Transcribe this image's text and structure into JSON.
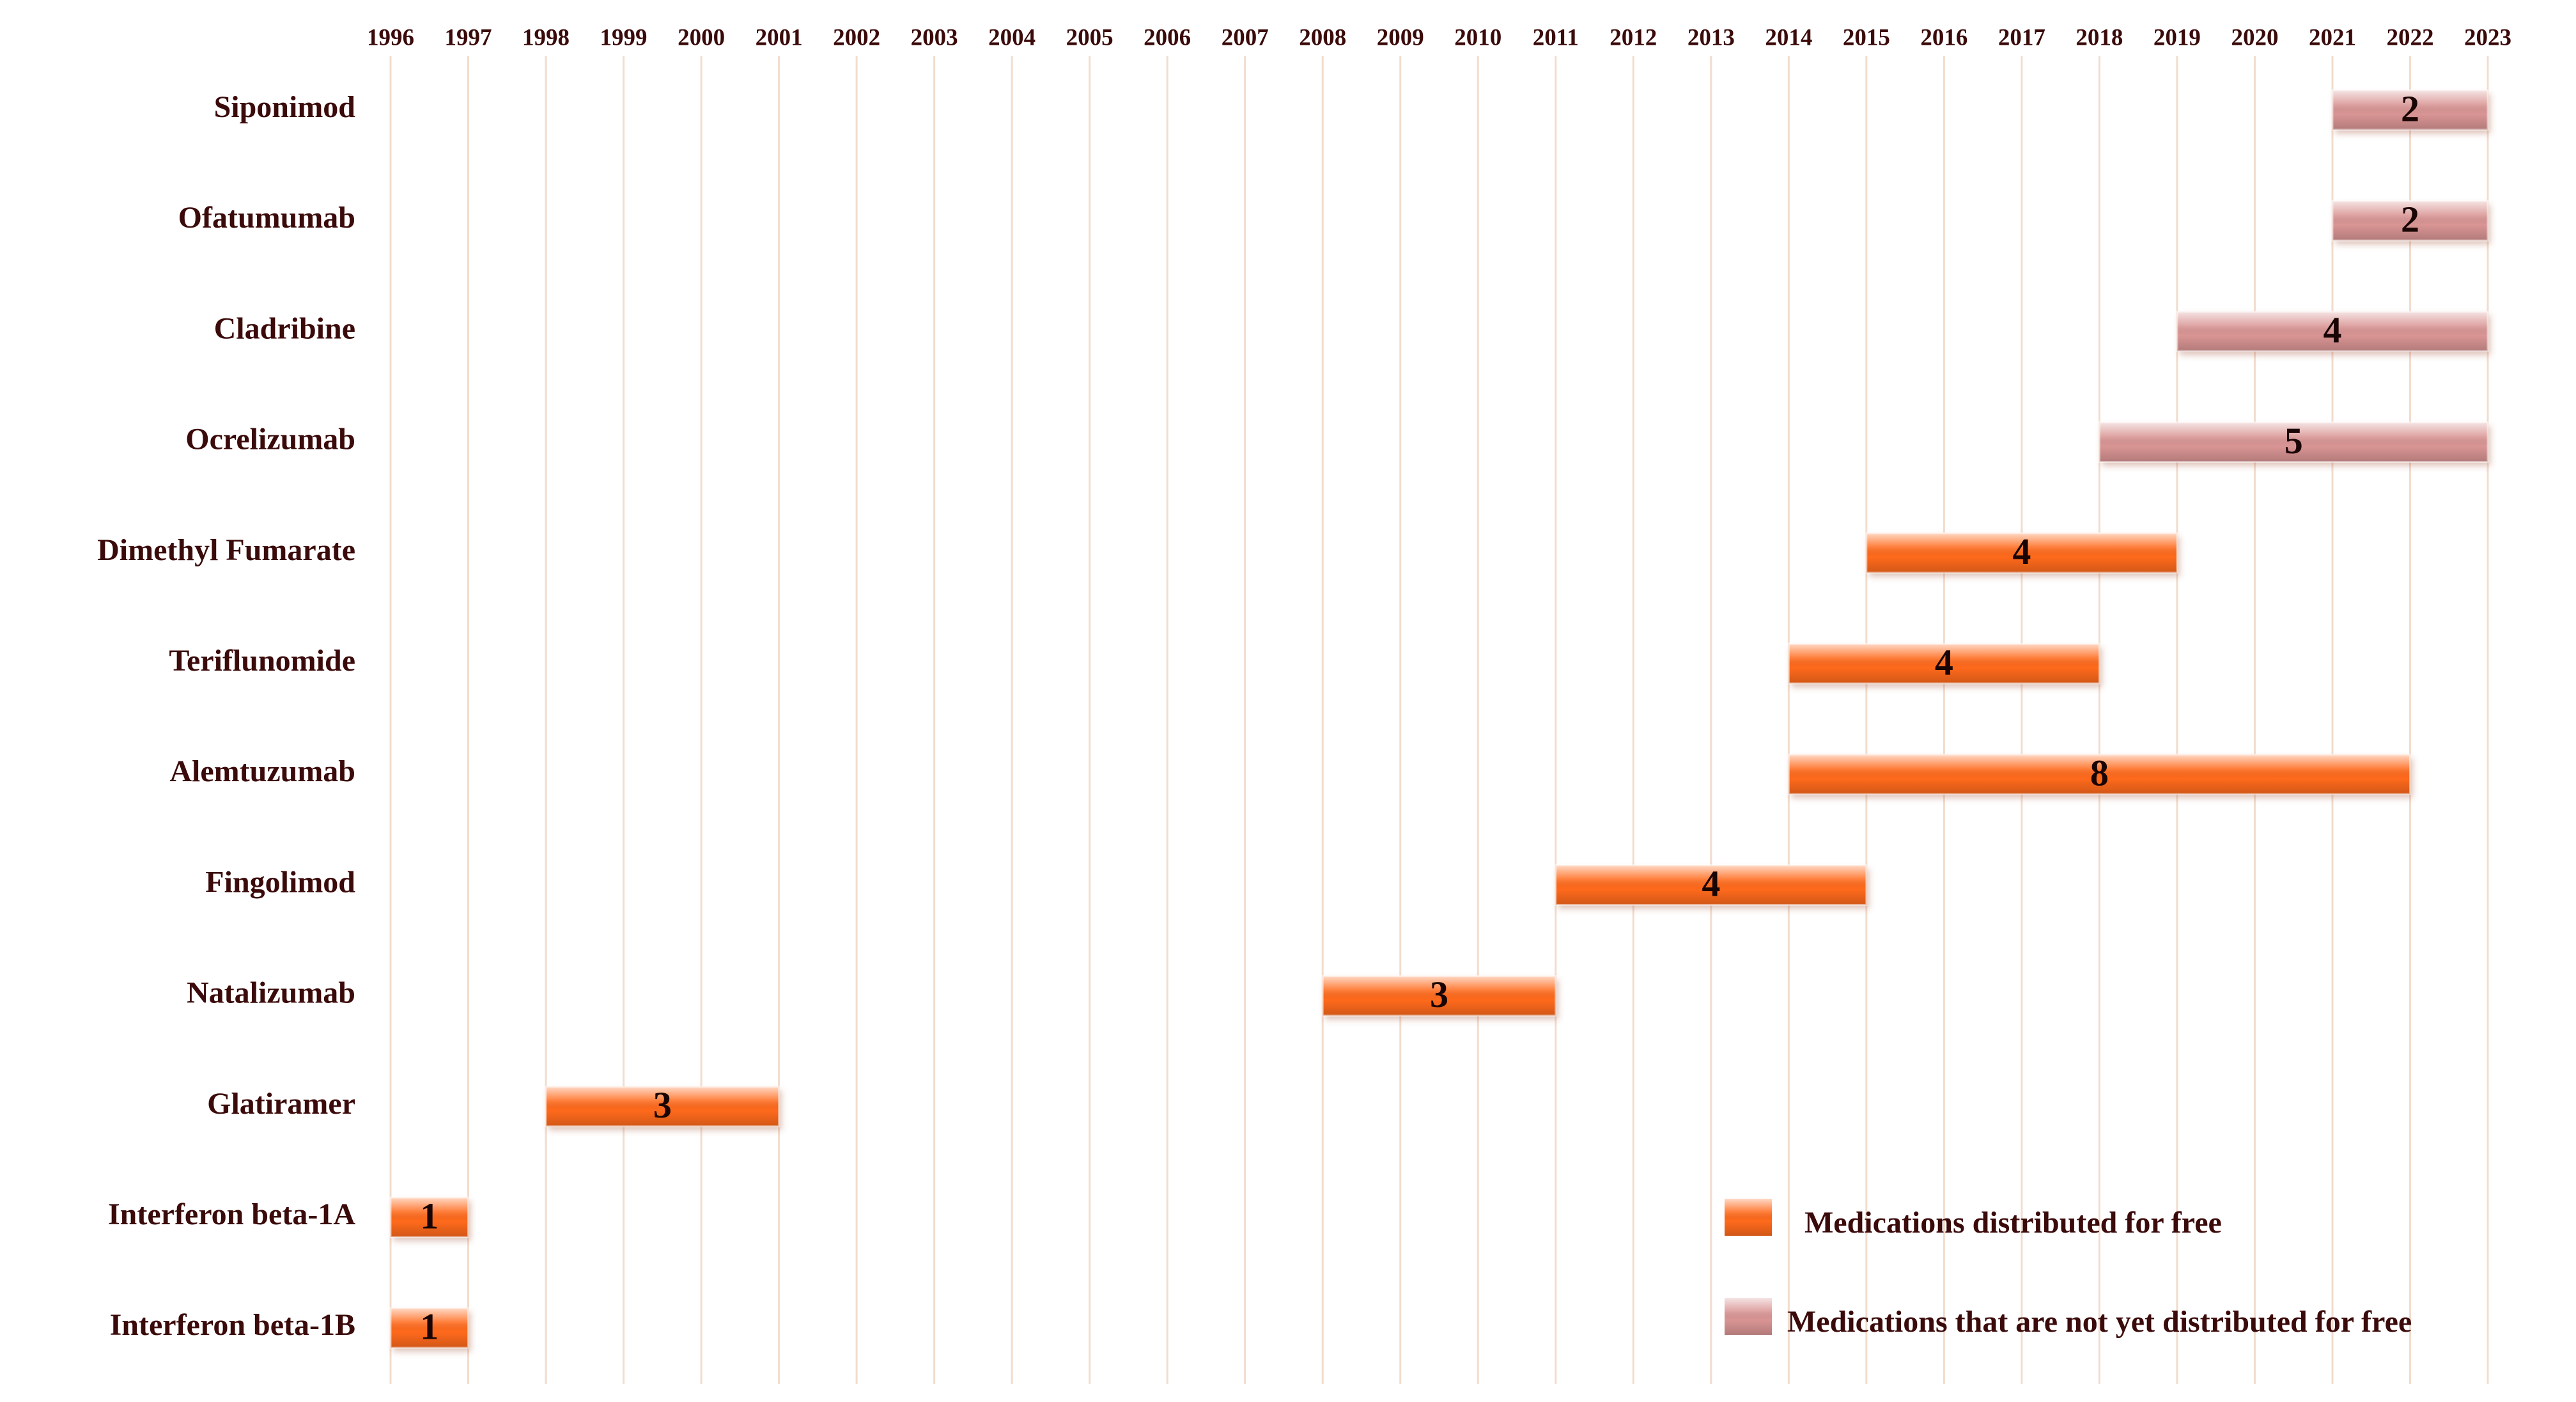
{
  "chart_data": {
    "type": "gantt",
    "categories": [
      "Siponimod",
      "Ofatumumab",
      "Cladribine",
      "Ocrelizumab",
      "Dimethyl Fumarate",
      "Teriflunomide",
      "Alemtuzumab",
      "Fingolimod",
      "Natalizumab",
      "Glatiramer",
      "Interferon beta-1A",
      "Interferon beta-1B"
    ],
    "series": [
      {
        "name": "Medications distributed for free",
        "color": "#ff6a1c",
        "start": [
          null,
          null,
          null,
          null,
          2015,
          2014,
          2014,
          2011,
          2008,
          1998,
          1996,
          1996
        ],
        "values": [
          null,
          null,
          null,
          null,
          4,
          4,
          8,
          4,
          3,
          3,
          1,
          1
        ]
      },
      {
        "name": "Medications that are not yet distributed for free",
        "color": "#d99594",
        "start": [
          2021,
          2021,
          2019,
          2018,
          null,
          null,
          null,
          null,
          null,
          null,
          null,
          null
        ],
        "values": [
          2,
          2,
          4,
          5,
          null,
          null,
          null,
          null,
          null,
          null,
          null,
          null
        ]
      }
    ],
    "xlim": [
      1996,
      2023
    ],
    "xticks": [
      1996,
      1997,
      1998,
      1999,
      2000,
      2001,
      2002,
      2003,
      2004,
      2005,
      2006,
      2007,
      2008,
      2009,
      2010,
      2011,
      2012,
      2013,
      2014,
      2015,
      2016,
      2017,
      2018,
      2019,
      2020,
      2021,
      2022,
      2023
    ],
    "grid": true,
    "legend": "lower right"
  }
}
